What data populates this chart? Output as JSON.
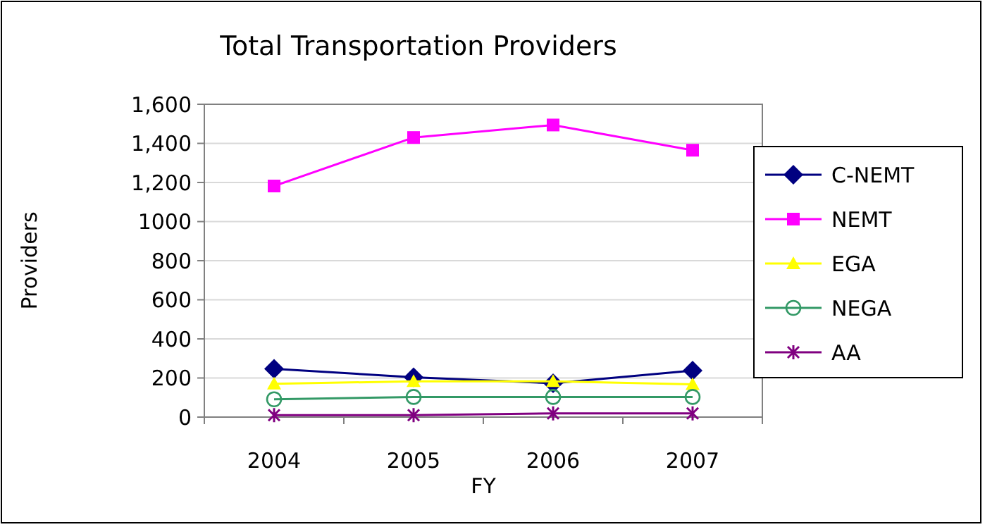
{
  "chart_data": {
    "type": "line",
    "title": "Total Transportation Providers",
    "xlabel": "FY",
    "ylabel": "Providers",
    "categories": [
      "2004",
      "2005",
      "2006",
      "2007"
    ],
    "series": [
      {
        "name": "C-NEMT",
        "color": "#000080",
        "marker": "diamond",
        "values": [
          247,
          204,
          173,
          238
        ]
      },
      {
        "name": "NEMT",
        "color": "#ff00ff",
        "marker": "square",
        "values": [
          1182,
          1430,
          1494,
          1365
        ]
      },
      {
        "name": "EGA",
        "color": "#ffff00",
        "marker": "triangle",
        "values": [
          170,
          183,
          183,
          168
        ]
      },
      {
        "name": "NEGA",
        "color": "#339966",
        "marker": "circle",
        "values": [
          91,
          103,
          103,
          103
        ]
      },
      {
        "name": "AA",
        "color": "#800080",
        "marker": "cross",
        "values": [
          10,
          10,
          19,
          19
        ]
      }
    ],
    "ylim": [
      0,
      1600
    ],
    "yticks": [
      0,
      200,
      400,
      600,
      800,
      1000,
      {
        "value": 1200,
        "label": "1,200"
      },
      {
        "value": 1400,
        "label": "1,400"
      },
      {
        "value": 1600,
        "label": "1,600"
      }
    ],
    "grid": "y",
    "legend": "right",
    "line_style": "solid"
  }
}
